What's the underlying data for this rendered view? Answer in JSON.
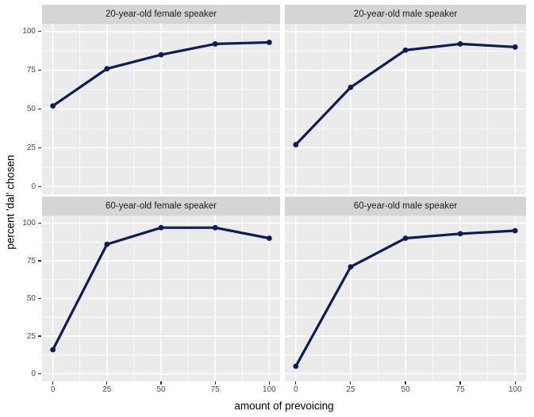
{
  "chart_data": {
    "type": "line",
    "title": "",
    "xlabel": "amount of prevoicing",
    "ylabel": "percent 'dal' chosen",
    "x": [
      0,
      25,
      50,
      75,
      100
    ],
    "facets": [
      {
        "title": "20-year-old female speaker",
        "values": [
          52,
          76,
          85,
          92,
          93
        ]
      },
      {
        "title": "20-year-old male speaker",
        "values": [
          27,
          64,
          88,
          92,
          90
        ]
      },
      {
        "title": "60-year-old female speaker",
        "values": [
          16,
          86,
          97,
          97,
          90
        ]
      },
      {
        "title": "60-year-old male speaker",
        "values": [
          5,
          71,
          90,
          93,
          95
        ]
      }
    ],
    "x_ticks": [
      0,
      25,
      50,
      75,
      100
    ],
    "y_ticks": [
      0,
      25,
      50,
      75,
      100
    ],
    "x_minor_ticks": [
      12.5,
      37.5,
      62.5,
      87.5
    ],
    "y_minor_ticks": [
      12.5,
      37.5,
      62.5,
      87.5
    ],
    "xlim": [
      0,
      100
    ],
    "ylim": [
      0,
      100
    ],
    "grid": "major-and-minor",
    "legend": "none",
    "style": {
      "line_color": "#0d1c5b",
      "panel_bg": "#ebebeb",
      "strip_bg": "#d5d5d5",
      "grid_color": "#ffffff",
      "tick_label_color": "#4d4d4d",
      "tick_mark_color": "#333333",
      "axis_title_color": "#000000",
      "strip_text_color": "#1a1a1a"
    }
  }
}
